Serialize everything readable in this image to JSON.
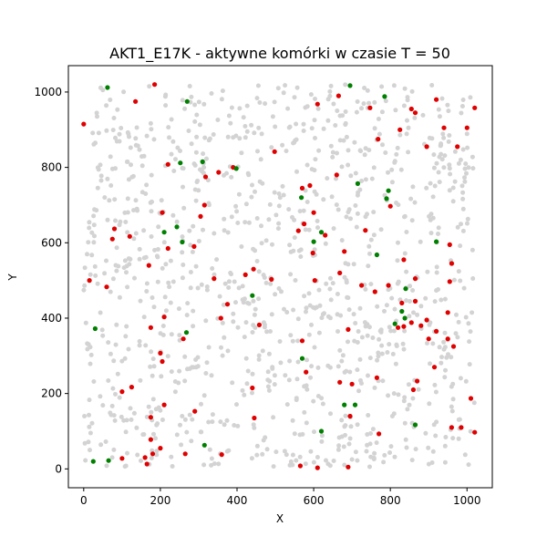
{
  "chart_data": {
    "type": "scatter",
    "title": "AKT1_E17K - aktywne komórki w czasie T = 50",
    "xlabel": "X",
    "ylabel": "Y",
    "xlim": [
      -40,
      1066
    ],
    "ylim": [
      -50,
      1070
    ],
    "xticks": [
      0,
      200,
      400,
      600,
      800,
      1000
    ],
    "yticks": [
      0,
      200,
      400,
      600,
      800,
      1000
    ],
    "grid": false,
    "colors": {
      "inactive": "#d3d3d3",
      "red": "#e00000",
      "green": "#008000"
    },
    "background_cells": {
      "description_free": true,
      "count": 1100,
      "x_range": [
        0,
        1020
      ],
      "y_range": [
        5,
        1020
      ]
    },
    "series": [
      {
        "color": "red",
        "points": [
          [
            0,
            915
          ],
          [
            185,
            1020
          ],
          [
            135,
            975
          ],
          [
            220,
            808
          ],
          [
            498,
            842
          ],
          [
            352,
            787
          ],
          [
            318,
            775
          ],
          [
            390,
            800
          ],
          [
            610,
            968
          ],
          [
            665,
            990
          ],
          [
            747,
            958
          ],
          [
            768,
            875
          ],
          [
            825,
            900
          ],
          [
            855,
            955
          ],
          [
            865,
            945
          ],
          [
            920,
            980
          ],
          [
            940,
            905
          ],
          [
            1000,
            905
          ],
          [
            975,
            855
          ],
          [
            895,
            855
          ],
          [
            1020,
            958
          ],
          [
            205,
            680
          ],
          [
            315,
            700
          ],
          [
            305,
            670
          ],
          [
            220,
            585
          ],
          [
            288,
            590
          ],
          [
            80,
            637
          ],
          [
            120,
            617
          ],
          [
            75,
            610
          ],
          [
            170,
            540
          ],
          [
            15,
            500
          ],
          [
            60,
            483
          ],
          [
            340,
            505
          ],
          [
            422,
            515
          ],
          [
            443,
            530
          ],
          [
            490,
            503
          ],
          [
            375,
            437
          ],
          [
            358,
            400
          ],
          [
            458,
            382
          ],
          [
            570,
            745
          ],
          [
            590,
            752
          ],
          [
            600,
            680
          ],
          [
            575,
            650
          ],
          [
            560,
            632
          ],
          [
            598,
            573
          ],
          [
            630,
            620
          ],
          [
            680,
            577
          ],
          [
            660,
            780
          ],
          [
            668,
            520
          ],
          [
            603,
            500
          ],
          [
            735,
            633
          ],
          [
            725,
            487
          ],
          [
            760,
            470
          ],
          [
            795,
            487
          ],
          [
            800,
            697
          ],
          [
            835,
            555
          ],
          [
            865,
            505
          ],
          [
            955,
            595
          ],
          [
            960,
            545
          ],
          [
            955,
            497
          ],
          [
            865,
            445
          ],
          [
            830,
            440
          ],
          [
            835,
            378
          ],
          [
            820,
            375
          ],
          [
            855,
            388
          ],
          [
            880,
            380
          ],
          [
            900,
            345
          ],
          [
            895,
            395
          ],
          [
            920,
            365
          ],
          [
            950,
            345
          ],
          [
            950,
            415
          ],
          [
            965,
            325
          ],
          [
            915,
            270
          ],
          [
            690,
            370
          ],
          [
            570,
            340
          ],
          [
            580,
            257
          ],
          [
            260,
            345
          ],
          [
            210,
            403
          ],
          [
            175,
            375
          ],
          [
            200,
            307
          ],
          [
            205,
            285
          ],
          [
            100,
            205
          ],
          [
            125,
            217
          ],
          [
            210,
            170
          ],
          [
            175,
            137
          ],
          [
            290,
            153
          ],
          [
            440,
            215
          ],
          [
            445,
            135
          ],
          [
            668,
            230
          ],
          [
            700,
            225
          ],
          [
            695,
            140
          ],
          [
            765,
            242
          ],
          [
            860,
            210
          ],
          [
            870,
            233
          ],
          [
            1010,
            187
          ],
          [
            960,
            110
          ],
          [
            985,
            110
          ],
          [
            1020,
            97
          ],
          [
            770,
            93
          ],
          [
            690,
            5
          ],
          [
            565,
            8
          ],
          [
            610,
            3
          ],
          [
            180,
            40
          ],
          [
            200,
            55
          ],
          [
            175,
            78
          ],
          [
            160,
            30
          ],
          [
            165,
            13
          ],
          [
            100,
            28
          ],
          [
            265,
            40
          ],
          [
            360,
            38
          ]
        ]
      },
      {
        "color": "green",
        "points": [
          [
            62,
            1012
          ],
          [
            270,
            975
          ],
          [
            695,
            1017
          ],
          [
            785,
            988
          ],
          [
            310,
            815
          ],
          [
            252,
            812
          ],
          [
            398,
            797
          ],
          [
            715,
            757
          ],
          [
            568,
            720
          ],
          [
            795,
            738
          ],
          [
            790,
            717
          ],
          [
            243,
            642
          ],
          [
            210,
            628
          ],
          [
            257,
            602
          ],
          [
            620,
            628
          ],
          [
            600,
            603
          ],
          [
            765,
            568
          ],
          [
            920,
            603
          ],
          [
            440,
            460
          ],
          [
            840,
            478
          ],
          [
            830,
            418
          ],
          [
            838,
            400
          ],
          [
            812,
            385
          ],
          [
            30,
            372
          ],
          [
            268,
            362
          ],
          [
            570,
            293
          ],
          [
            680,
            170
          ],
          [
            708,
            170
          ],
          [
            620,
            100
          ],
          [
            865,
            117
          ],
          [
            315,
            63
          ],
          [
            25,
            20
          ],
          [
            65,
            22
          ]
        ]
      }
    ]
  }
}
